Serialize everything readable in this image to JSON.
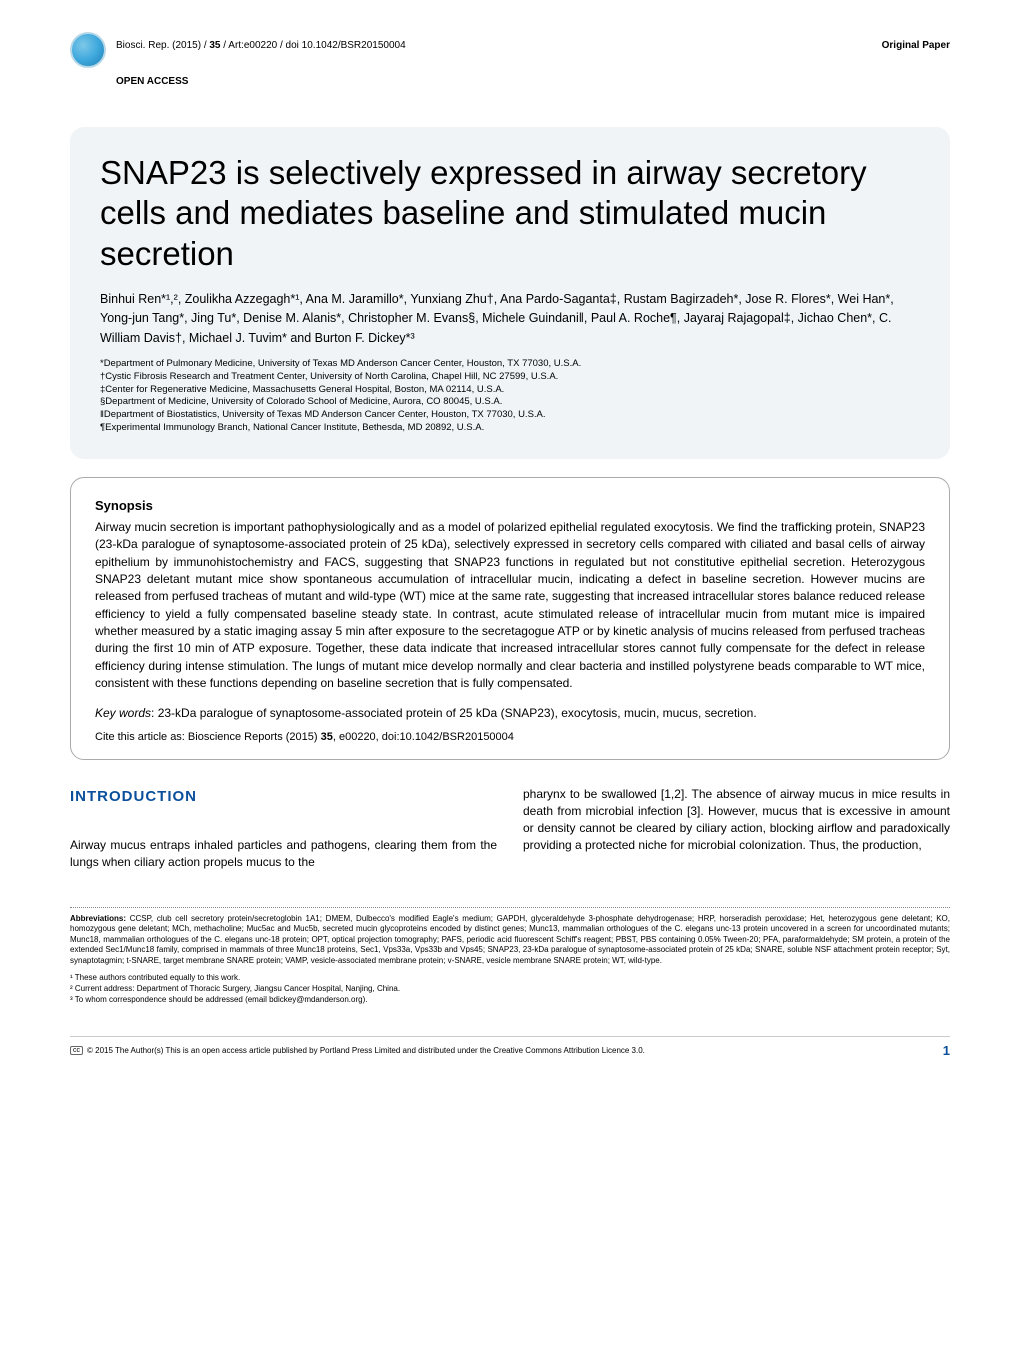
{
  "header": {
    "citation_prefix": "Biosci. Rep. (2015) / ",
    "volume": "35",
    "citation_suffix": " / Art:e00220 / doi 10.1042/BSR20150004",
    "paper_type": "Original Paper",
    "open_access": "OPEN ACCESS"
  },
  "title": "SNAP23 is selectively expressed in airway secretory cells and mediates baseline and stimulated mucin secretion",
  "authors": "Binhui Ren*¹,², Zoulikha Azzegagh*¹, Ana M. Jaramillo*, Yunxiang Zhu†, Ana Pardo-Saganta‡, Rustam Bagirzadeh*, Jose R. Flores*, Wei Han*, Yong-jun Tang*, Jing Tu*, Denise M. Alanis*, Christopher M. Evans§, Michele Guindani‖, Paul A. Roche¶, Jayaraj Rajagopal‡, Jichao Chen*, C. William Davis†, Michael J. Tuvim* and Burton F. Dickey*³",
  "affiliations": [
    "*Department of Pulmonary Medicine, University of Texas MD Anderson Cancer Center, Houston, TX 77030, U.S.A.",
    "†Cystic Fibrosis Research and Treatment Center, University of North Carolina, Chapel Hill, NC 27599, U.S.A.",
    "‡Center for Regenerative Medicine, Massachusetts General Hospital, Boston, MA 02114, U.S.A.",
    "§Department of Medicine, University of Colorado School of Medicine, Aurora, CO 80045, U.S.A.",
    "‖Department of Biostatistics, University of Texas MD Anderson Cancer Center, Houston, TX 77030, U.S.A.",
    "¶Experimental Immunology Branch, National Cancer Institute, Bethesda, MD 20892, U.S.A."
  ],
  "synopsis": {
    "heading": "Synopsis",
    "text": "Airway mucin secretion is important pathophysiologically and as a model of polarized epithelial regulated exocytosis. We find the trafficking protein, SNAP23 (23-kDa paralogue of synaptosome-associated protein of 25 kDa), selectively expressed in secretory cells compared with ciliated and basal cells of airway epithelium by immunohistochemistry and FACS, suggesting that SNAP23 functions in regulated but not constitutive epithelial secretion. Heterozygous SNAP23 deletant mutant mice show spontaneous accumulation of intracellular mucin, indicating a defect in baseline secretion. However mucins are released from perfused tracheas of mutant and wild-type (WT) mice at the same rate, suggesting that increased intracellular stores balance reduced release efficiency to yield a fully compensated baseline steady state. In contrast, acute stimulated release of intracellular mucin from mutant mice is impaired whether measured by a static imaging assay 5 min after exposure to the secretagogue ATP or by kinetic analysis of mucins released from perfused tracheas during the first 10 min of ATP exposure. Together, these data indicate that increased intracellular stores cannot fully compensate for the defect in release efficiency during intense stimulation. The lungs of mutant mice develop normally and clear bacteria and instilled polystyrene beads comparable to WT mice, consistent with these functions depending on baseline secretion that is fully compensated.",
    "keywords_label": "Key words",
    "keywords": ": 23-kDa paralogue of synaptosome-associated protein of 25 kDa (SNAP23), exocytosis, mucin, mucus, secretion.",
    "cite_as_prefix": "Cite this article as: Bioscience Reports (2015) ",
    "cite_as_vol": "35",
    "cite_as_suffix": ", e00220, doi:10.1042/BSR20150004"
  },
  "intro": {
    "heading": "INTRODUCTION",
    "col1": "Airway mucus entraps inhaled particles and pathogens, clearing them from the lungs when ciliary action propels mucus to the",
    "col2": "pharynx to be swallowed [1,2]. The absence of airway mucus in mice results in death from microbial infection [3]. However, mucus that is excessive in amount or density cannot be cleared by ciliary action, blocking airflow and paradoxically providing a protected niche for microbial colonization. Thus, the production,"
  },
  "abbreviations": {
    "label": "Abbreviations:",
    "text": " CCSP, club cell secretory protein/secretoglobin 1A1; DMEM, Dulbecco's modified Eagle's medium; GAPDH, glyceraldehyde 3-phosphate dehydrogenase; HRP, horseradish peroxidase; Het, heterozygous gene deletant; KO, homozygous gene deletant; MCh, methacholine; Muc5ac and Muc5b, secreted mucin glycoproteins encoded by distinct genes; Munc13, mammalian orthologues of the C. elegans unc-13 protein uncovered in a screen for uncoordinated mutants; Munc18, mammalian orthologues of the C. elegans unc-18 protein; OPT, optical projection tomography; PAFS, periodic acid fluorescent Schiff's reagent; PBST, PBS containing 0.05% Tween-20; PFA, paraformaldehyde; SM protein, a protein of the extended Sec1/Munc18 family, comprised in mammals of three Munc18 proteins, Sec1, Vps33a, Vps33b and Vps45; SNAP23, 23-kDa paralogue of synaptosome-associated protein of 25 kDa; SNARE, soluble NSF attachment protein receptor; Syt, synaptotagmin; t-SNARE, target membrane SNARE protein; VAMP, vesicle-associated membrane protein; v-SNARE, vesicle membrane SNARE protein; WT, wild-type."
  },
  "footnotes": [
    "¹ These authors contributed equally to this work.",
    "² Current address: Department of Thoracic Surgery, Jiangsu Cancer Hospital, Nanjing, China.",
    "³ To whom correspondence should be addressed (email bdickey@mdanderson.org)."
  ],
  "footer": {
    "copyright": "© 2015 The Author(s)  This is an open access article published by Portland Press Limited and distributed under the Creative Commons Attribution Licence 3.0.",
    "page": "1"
  },
  "colors": {
    "title_bg": "#f0f4f7",
    "heading_blue": "#0a4f9c",
    "logo_light": "#7ec8e8",
    "logo_dark": "#1e7fb5"
  }
}
